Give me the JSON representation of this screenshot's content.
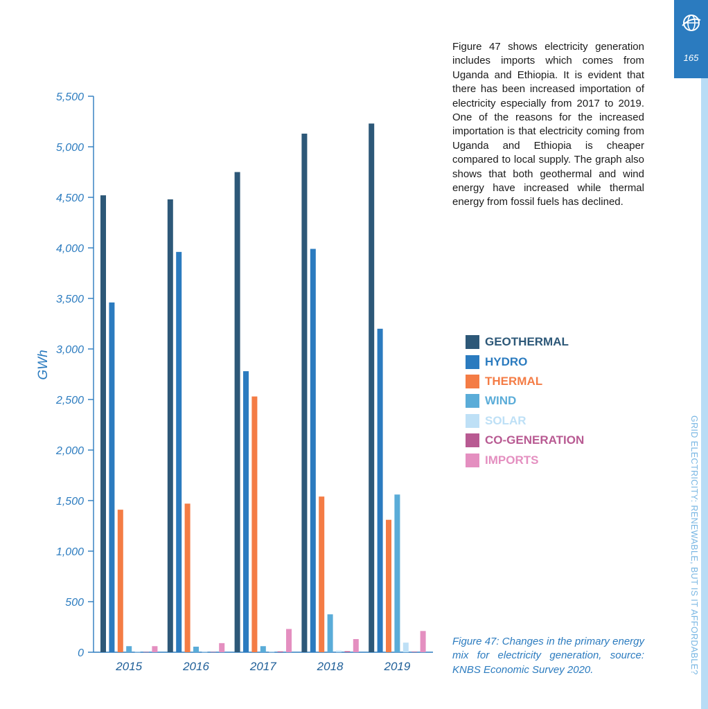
{
  "page": {
    "number": "165",
    "side_title": "GRID ELECTRICITY: RENEWABLE, BUT IS IT AFFORDABLE?",
    "tab_icon": "globe-icon"
  },
  "body_text": "Figure 47 shows electricity generation includes imports which comes from Uganda and Ethiopia. It is evident that there has been increased importation of electricity especially from 2017 to 2019.  One of the reasons for the increased importation is that electricity coming from Uganda and Ethiopia is cheaper compared to local supply.  The graph also shows that both geothermal and wind energy have increased while thermal energy from fossil fuels has declined.",
  "caption": "Figure 47: Changes in the primary energy mix for electricity generation, source: KNBS Economic Survey 2020.",
  "colors": {
    "accent": "#2b7bbf",
    "axis": "#2b7bbf",
    "tab": "#2b7bbf",
    "strip": "#b9dcf5"
  },
  "chart_data": {
    "type": "bar",
    "ylabel": "GWh",
    "xlabel": "",
    "ylim": [
      0,
      5500
    ],
    "yticks": [
      0,
      500,
      1000,
      1500,
      2000,
      2500,
      3000,
      3500,
      4000,
      4500,
      5000,
      5500
    ],
    "ytick_labels": [
      "0",
      "500",
      "1,000",
      "1,500",
      "2,000",
      "2,500",
      "3,000",
      "3,500",
      "4,000",
      "4,500",
      "5,000",
      "5,500"
    ],
    "categories": [
      "2015",
      "2016",
      "2017",
      "2018",
      "2019"
    ],
    "grid": false,
    "legend_position": "right",
    "series": [
      {
        "name": "GEOTHERMAL",
        "color": "#2d5878",
        "values": [
          4520,
          4480,
          4750,
          5130,
          5230
        ]
      },
      {
        "name": "HYDRO",
        "color": "#2b7bbf",
        "values": [
          3460,
          3960,
          2780,
          3990,
          3200
        ]
      },
      {
        "name": "THERMAL",
        "color": "#f47c45",
        "values": [
          1410,
          1470,
          2530,
          1540,
          1310
        ]
      },
      {
        "name": "WIND",
        "color": "#5aacd8",
        "values": [
          60,
          55,
          60,
          375,
          1560
        ]
      },
      {
        "name": "SOLAR",
        "color": "#bee0f6",
        "values": [
          3,
          3,
          3,
          15,
          95
        ]
      },
      {
        "name": "CO-GENERATION",
        "color": "#b85a92",
        "values": [
          3,
          3,
          8,
          10,
          5
        ]
      },
      {
        "name": "IMPORTS",
        "color": "#e48fc0",
        "values": [
          60,
          90,
          230,
          130,
          210
        ]
      }
    ]
  }
}
